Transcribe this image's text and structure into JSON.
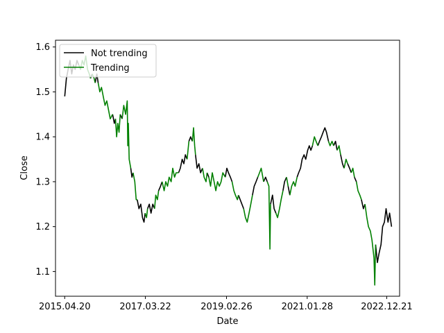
{
  "chart_data": {
    "type": "line",
    "xlabel": "Date",
    "ylabel": "Close",
    "x_ticks": [
      "2015.04.20",
      "2017.03.22",
      "2019.02.26",
      "2021.01.28",
      "2022.12.21"
    ],
    "y_ticks": [
      "1.1",
      "1.2",
      "1.3",
      "1.4",
      "1.5",
      "1.6"
    ],
    "xlim": [
      "2015-01-30",
      "2023-04-12"
    ],
    "ylim": [
      1.045,
      1.615
    ],
    "grid": false,
    "legend_position": "top-left",
    "series": [
      {
        "name": "Not trending",
        "color": "#000000",
        "points": [
          [
            "2015-04-20",
            1.49
          ],
          [
            "2015-05-05",
            1.53
          ],
          [
            "2015-05-20",
            1.55
          ],
          [
            "2015-06-05",
            1.57
          ],
          [
            "2015-06-20",
            1.54
          ],
          [
            "2015-07-05",
            1.56
          ],
          [
            "2015-07-20",
            1.55
          ],
          [
            "2015-08-05",
            1.57
          ],
          [
            "2015-08-20",
            1.56
          ],
          null,
          [
            "2015-12-01",
            1.53
          ],
          [
            "2015-12-15",
            1.54
          ],
          null,
          [
            "2016-01-10",
            1.52
          ],
          [
            "2016-01-25",
            1.54
          ],
          [
            "2016-02-05",
            1.52
          ],
          null,
          [
            "2016-06-10",
            1.45
          ],
          [
            "2016-06-25",
            1.43
          ],
          [
            "2016-07-05",
            1.44
          ],
          null,
          [
            "2016-08-15",
            1.45
          ],
          [
            "2016-09-01",
            1.44
          ],
          null,
          [
            "2016-11-15",
            1.33
          ],
          [
            "2016-11-25",
            1.31
          ],
          [
            "2016-12-05",
            1.32
          ],
          null,
          [
            "2017-01-10",
            1.26
          ],
          [
            "2017-01-25",
            1.24
          ],
          [
            "2017-02-10",
            1.25
          ],
          [
            "2017-02-25",
            1.22
          ],
          [
            "2017-03-10",
            1.21
          ],
          [
            "2017-03-20",
            1.23
          ],
          null,
          [
            "2017-04-10",
            1.24
          ],
          [
            "2017-04-25",
            1.25
          ],
          [
            "2017-05-10",
            1.23
          ],
          [
            "2017-05-25",
            1.25
          ],
          [
            "2017-06-10",
            1.24
          ],
          null,
          [
            "2017-07-15",
            1.28
          ],
          [
            "2017-08-01",
            1.29
          ],
          [
            "2017-08-15",
            1.3
          ],
          null,
          [
            "2018-01-05",
            1.32
          ],
          [
            "2018-01-20",
            1.33
          ],
          [
            "2018-02-05",
            1.35
          ],
          [
            "2018-02-20",
            1.34
          ],
          [
            "2018-03-05",
            1.36
          ],
          [
            "2018-03-20",
            1.35
          ],
          null,
          [
            "2018-04-05",
            1.39
          ],
          [
            "2018-04-20",
            1.4
          ],
          [
            "2018-05-05",
            1.39
          ],
          null,
          [
            "2018-06-01",
            1.36
          ],
          [
            "2018-06-15",
            1.33
          ],
          [
            "2018-07-01",
            1.34
          ],
          [
            "2018-07-15",
            1.32
          ],
          [
            "2018-08-01",
            1.33
          ],
          null,
          [
            "2018-09-10",
            1.32
          ],
          [
            "2018-09-25",
            1.31
          ],
          null,
          [
            "2019-02-15",
            1.31
          ],
          [
            "2019-03-01",
            1.33
          ],
          [
            "2019-03-15",
            1.32
          ],
          [
            "2019-04-01",
            1.31
          ],
          [
            "2019-04-15",
            1.3
          ],
          null,
          [
            "2019-06-10",
            1.27
          ],
          [
            "2019-06-25",
            1.26
          ],
          [
            "2019-07-10",
            1.25
          ],
          [
            "2019-07-25",
            1.24
          ],
          null,
          [
            "2019-10-10",
            1.27
          ],
          [
            "2019-10-25",
            1.29
          ],
          [
            "2019-11-10",
            1.3
          ],
          [
            "2019-11-25",
            1.31
          ],
          null,
          [
            "2020-01-15",
            1.3
          ],
          [
            "2020-02-01",
            1.31
          ],
          [
            "2020-02-15",
            1.3
          ],
          null,
          [
            "2020-03-15",
            1.25
          ],
          [
            "2020-04-01",
            1.27
          ],
          [
            "2020-04-15",
            1.24
          ],
          [
            "2020-05-01",
            1.23
          ],
          null,
          [
            "2020-07-01",
            1.28
          ],
          [
            "2020-07-15",
            1.3
          ],
          [
            "2020-08-01",
            1.31
          ],
          null,
          [
            "2020-08-15",
            1.29
          ],
          [
            "2020-08-30",
            1.27
          ],
          null,
          [
            "2020-11-01",
            1.31
          ],
          [
            "2020-11-15",
            1.32
          ],
          [
            "2020-12-01",
            1.33
          ],
          [
            "2020-12-15",
            1.35
          ],
          [
            "2021-01-01",
            1.36
          ],
          [
            "2021-01-15",
            1.35
          ],
          [
            "2021-02-01",
            1.37
          ],
          [
            "2021-02-15",
            1.38
          ],
          [
            "2021-03-01",
            1.37
          ],
          [
            "2021-03-15",
            1.38
          ],
          null,
          [
            "2021-05-01",
            1.38
          ],
          [
            "2021-05-15",
            1.39
          ],
          [
            "2021-06-01",
            1.4
          ],
          [
            "2021-06-15",
            1.41
          ],
          [
            "2021-07-01",
            1.42
          ],
          [
            "2021-07-15",
            1.41
          ],
          [
            "2021-08-01",
            1.39
          ],
          null,
          [
            "2021-09-15",
            1.38
          ],
          [
            "2021-10-01",
            1.39
          ],
          [
            "2021-10-15",
            1.37
          ],
          null,
          [
            "2021-11-15",
            1.36
          ],
          [
            "2021-12-01",
            1.34
          ],
          [
            "2021-12-15",
            1.33
          ],
          null,
          [
            "2022-01-15",
            1.34
          ],
          [
            "2022-02-01",
            1.33
          ],
          [
            "2022-02-15",
            1.32
          ],
          null,
          [
            "2022-03-15",
            1.31
          ],
          [
            "2022-04-01",
            1.3
          ],
          null,
          [
            "2022-05-15",
            1.26
          ],
          [
            "2022-06-01",
            1.24
          ],
          [
            "2022-06-15",
            1.25
          ],
          null,
          [
            "2022-09-15",
            1.16
          ],
          [
            "2022-10-01",
            1.12
          ],
          [
            "2022-10-15",
            1.14
          ],
          [
            "2022-11-01",
            1.16
          ],
          [
            "2022-11-15",
            1.2
          ],
          [
            "2022-12-01",
            1.21
          ],
          [
            "2022-12-15",
            1.24
          ],
          [
            "2023-01-01",
            1.21
          ],
          [
            "2023-01-15",
            1.23
          ],
          [
            "2023-02-01",
            1.2
          ]
        ]
      },
      {
        "name": "Trending",
        "color": "#008000",
        "points": [
          [
            "2015-08-20",
            1.56
          ],
          [
            "2015-09-05",
            1.55
          ],
          [
            "2015-09-20",
            1.57
          ],
          [
            "2015-10-05",
            1.56
          ],
          [
            "2015-10-20",
            1.58
          ],
          [
            "2015-11-05",
            1.55
          ],
          [
            "2015-11-20",
            1.54
          ],
          [
            "2015-12-01",
            1.53
          ],
          null,
          [
            "2015-12-15",
            1.54
          ],
          [
            "2016-01-01",
            1.53
          ],
          [
            "2016-01-10",
            1.52
          ],
          null,
          [
            "2016-02-05",
            1.52
          ],
          [
            "2016-02-20",
            1.5
          ],
          [
            "2016-03-05",
            1.51
          ],
          [
            "2016-03-20",
            1.49
          ],
          [
            "2016-04-05",
            1.47
          ],
          [
            "2016-04-20",
            1.48
          ],
          [
            "2016-05-05",
            1.46
          ],
          [
            "2016-05-20",
            1.44
          ],
          [
            "2016-06-10",
            1.45
          ],
          null,
          [
            "2016-07-05",
            1.44
          ],
          [
            "2016-07-15",
            1.4
          ],
          [
            "2016-07-25",
            1.43
          ],
          [
            "2016-08-05",
            1.41
          ],
          [
            "2016-08-15",
            1.45
          ],
          null,
          [
            "2016-09-01",
            1.44
          ],
          [
            "2016-09-15",
            1.47
          ],
          [
            "2016-10-01",
            1.45
          ],
          [
            "2016-10-15",
            1.48
          ],
          [
            "2016-10-20",
            1.38
          ],
          [
            "2016-10-25",
            1.43
          ],
          [
            "2016-11-01",
            1.35
          ],
          [
            "2016-11-15",
            1.33
          ],
          null,
          [
            "2016-12-05",
            1.32
          ],
          [
            "2016-12-20",
            1.3
          ],
          [
            "2017-01-01",
            1.26
          ],
          [
            "2017-01-10",
            1.26
          ],
          null,
          [
            "2017-03-20",
            1.23
          ],
          [
            "2017-04-01",
            1.22
          ],
          [
            "2017-04-10",
            1.24
          ],
          null,
          [
            "2017-06-10",
            1.24
          ],
          [
            "2017-06-20",
            1.27
          ],
          [
            "2017-07-05",
            1.26
          ],
          [
            "2017-07-15",
            1.28
          ],
          null,
          [
            "2017-08-15",
            1.3
          ],
          [
            "2017-09-01",
            1.28
          ],
          [
            "2017-09-15",
            1.3
          ],
          [
            "2017-10-01",
            1.29
          ],
          [
            "2017-10-15",
            1.31
          ],
          [
            "2017-11-01",
            1.3
          ],
          [
            "2017-11-15",
            1.33
          ],
          [
            "2017-12-01",
            1.31
          ],
          [
            "2017-12-15",
            1.32
          ],
          [
            "2018-01-05",
            1.32
          ],
          null,
          [
            "2018-03-20",
            1.35
          ],
          [
            "2018-04-05",
            1.39
          ],
          null,
          [
            "2018-05-05",
            1.39
          ],
          [
            "2018-05-15",
            1.42
          ],
          [
            "2018-05-25",
            1.38
          ],
          [
            "2018-06-01",
            1.36
          ],
          null,
          [
            "2018-08-01",
            1.33
          ],
          [
            "2018-08-15",
            1.31
          ],
          [
            "2018-09-01",
            1.3
          ],
          [
            "2018-09-10",
            1.32
          ],
          null,
          [
            "2018-09-25",
            1.31
          ],
          [
            "2018-10-10",
            1.29
          ],
          [
            "2018-10-25",
            1.32
          ],
          [
            "2018-11-10",
            1.3
          ],
          [
            "2018-11-25",
            1.28
          ],
          [
            "2018-12-10",
            1.3
          ],
          [
            "2018-12-25",
            1.29
          ],
          [
            "2019-01-10",
            1.3
          ],
          [
            "2019-01-25",
            1.32
          ],
          [
            "2019-02-15",
            1.31
          ],
          null,
          [
            "2019-04-15",
            1.3
          ],
          [
            "2019-05-01",
            1.28
          ],
          [
            "2019-05-15",
            1.27
          ],
          [
            "2019-06-01",
            1.26
          ],
          [
            "2019-06-10",
            1.27
          ],
          null,
          [
            "2019-07-25",
            1.24
          ],
          [
            "2019-08-10",
            1.22
          ],
          [
            "2019-08-25",
            1.21
          ],
          [
            "2019-09-10",
            1.23
          ],
          [
            "2019-09-25",
            1.25
          ],
          [
            "2019-10-10",
            1.27
          ],
          null,
          [
            "2019-11-25",
            1.31
          ],
          [
            "2019-12-10",
            1.32
          ],
          [
            "2019-12-25",
            1.33
          ],
          [
            "2020-01-15",
            1.3
          ],
          null,
          [
            "2020-02-15",
            1.3
          ],
          [
            "2020-03-01",
            1.29
          ],
          [
            "2020-03-10",
            1.15
          ],
          [
            "2020-03-15",
            1.25
          ],
          null,
          [
            "2020-05-01",
            1.23
          ],
          [
            "2020-05-15",
            1.22
          ],
          [
            "2020-06-01",
            1.24
          ],
          [
            "2020-06-15",
            1.26
          ],
          [
            "2020-07-01",
            1.28
          ],
          null,
          [
            "2020-08-01",
            1.31
          ],
          [
            "2020-08-15",
            1.29
          ],
          null,
          [
            "2020-08-30",
            1.27
          ],
          [
            "2020-09-15",
            1.29
          ],
          [
            "2020-10-01",
            1.3
          ],
          [
            "2020-10-15",
            1.29
          ],
          [
            "2020-11-01",
            1.31
          ],
          null,
          [
            "2021-03-15",
            1.38
          ],
          [
            "2021-04-01",
            1.4
          ],
          [
            "2021-04-15",
            1.39
          ],
          [
            "2021-05-01",
            1.38
          ],
          null,
          [
            "2021-08-01",
            1.39
          ],
          [
            "2021-08-15",
            1.38
          ],
          [
            "2021-09-01",
            1.39
          ],
          [
            "2021-09-15",
            1.38
          ],
          null,
          [
            "2021-10-15",
            1.37
          ],
          [
            "2021-11-01",
            1.38
          ],
          [
            "2021-11-15",
            1.36
          ],
          null,
          [
            "2021-12-15",
            1.33
          ],
          [
            "2022-01-01",
            1.35
          ],
          [
            "2022-01-15",
            1.34
          ],
          null,
          [
            "2022-02-15",
            1.32
          ],
          [
            "2022-03-01",
            1.33
          ],
          [
            "2022-03-15",
            1.31
          ],
          null,
          [
            "2022-04-01",
            1.3
          ],
          [
            "2022-04-15",
            1.28
          ],
          [
            "2022-05-01",
            1.27
          ],
          [
            "2022-05-15",
            1.26
          ],
          null,
          [
            "2022-06-15",
            1.25
          ],
          [
            "2022-07-01",
            1.22
          ],
          [
            "2022-07-15",
            1.2
          ],
          [
            "2022-08-01",
            1.19
          ],
          [
            "2022-08-15",
            1.17
          ],
          [
            "2022-09-01",
            1.13
          ],
          [
            "2022-09-08",
            1.07
          ],
          [
            "2022-09-15",
            1.16
          ]
        ]
      }
    ]
  }
}
